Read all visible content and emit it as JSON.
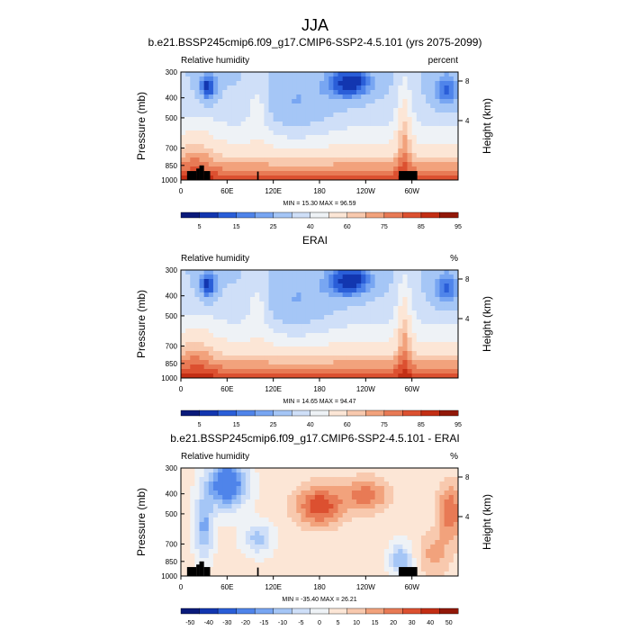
{
  "figure": {
    "title": "JJA"
  },
  "colorbars": {
    "rh": {
      "colors": [
        "#0a1a7a",
        "#1236b0",
        "#2a5ed8",
        "#4f84ea",
        "#78a6f2",
        "#a5c6f6",
        "#cfdff8",
        "#eef2f6",
        "#fce6d6",
        "#f8c9ae",
        "#f2a27c",
        "#e87a55",
        "#dc5030",
        "#c32e14",
        "#921808"
      ],
      "labels": [
        "5",
        "15",
        "25",
        "40",
        "60",
        "75",
        "85",
        "95"
      ]
    },
    "diff": {
      "colors": [
        "#0a1a7a",
        "#1236b0",
        "#2a5ed8",
        "#4f84ea",
        "#78a6f2",
        "#a5c6f6",
        "#cfdff8",
        "#eef2f6",
        "#fce6d6",
        "#f8c9ae",
        "#f2a27c",
        "#e87a55",
        "#dc5030",
        "#c32e14",
        "#921808"
      ],
      "labels": [
        "-50",
        "-40",
        "-30",
        "-20",
        "-15",
        "-10",
        "-5",
        "0",
        "5",
        "10",
        "15",
        "20",
        "30",
        "40",
        "50"
      ]
    }
  },
  "chart_data": [
    {
      "type": "heatmap",
      "title": "b.e21.BSSP245cmip6.f09_g17.CMIP6-SSP2-4.5.101 (yrs 2075-2099)",
      "left_label": "Relative humidity",
      "right_label": "percent",
      "ylabel": "Pressure (mb)",
      "ylabel_right": "Height (km)",
      "x_ticks": [
        "0",
        "60E",
        "120E",
        "180",
        "120W",
        "60W"
      ],
      "y_ticks": [
        "300",
        "400",
        "500",
        "700",
        "850",
        "1000"
      ],
      "y_right_ticks": [
        "8",
        "4"
      ],
      "stats": "MIN = 15.30  MAX = 96.59",
      "field": "rh",
      "terrain": true
    },
    {
      "type": "heatmap",
      "title": "ERAI",
      "left_label": "Relative humidity",
      "right_label": "%",
      "ylabel": "Pressure (mb)",
      "ylabel_right": "Height (km)",
      "x_ticks": [
        "0",
        "60E",
        "120E",
        "180",
        "120W",
        "60W"
      ],
      "y_ticks": [
        "300",
        "400",
        "500",
        "700",
        "850",
        "1000"
      ],
      "y_right_ticks": [
        "8",
        "4"
      ],
      "stats": "MIN = 14.65  MAX = 94.47",
      "field": "rh",
      "terrain": false
    },
    {
      "type": "heatmap",
      "title": "b.e21.BSSP245cmip6.f09_g17.CMIP6-SSP2-4.5.101 - ERAI",
      "left_label": "Relative humidity",
      "right_label": "%",
      "ylabel": "Pressure (mb)",
      "ylabel_right": "Height (km)",
      "x_ticks": [
        "0",
        "60E",
        "120E",
        "180",
        "120W",
        "60W"
      ],
      "y_ticks": [
        "300",
        "400",
        "500",
        "700",
        "850",
        "1000"
      ],
      "y_right_ticks": [
        "8",
        "4"
      ],
      "stats": "MIN = -35.40  MAX = 26.21",
      "field": "diff",
      "terrain": true
    }
  ]
}
